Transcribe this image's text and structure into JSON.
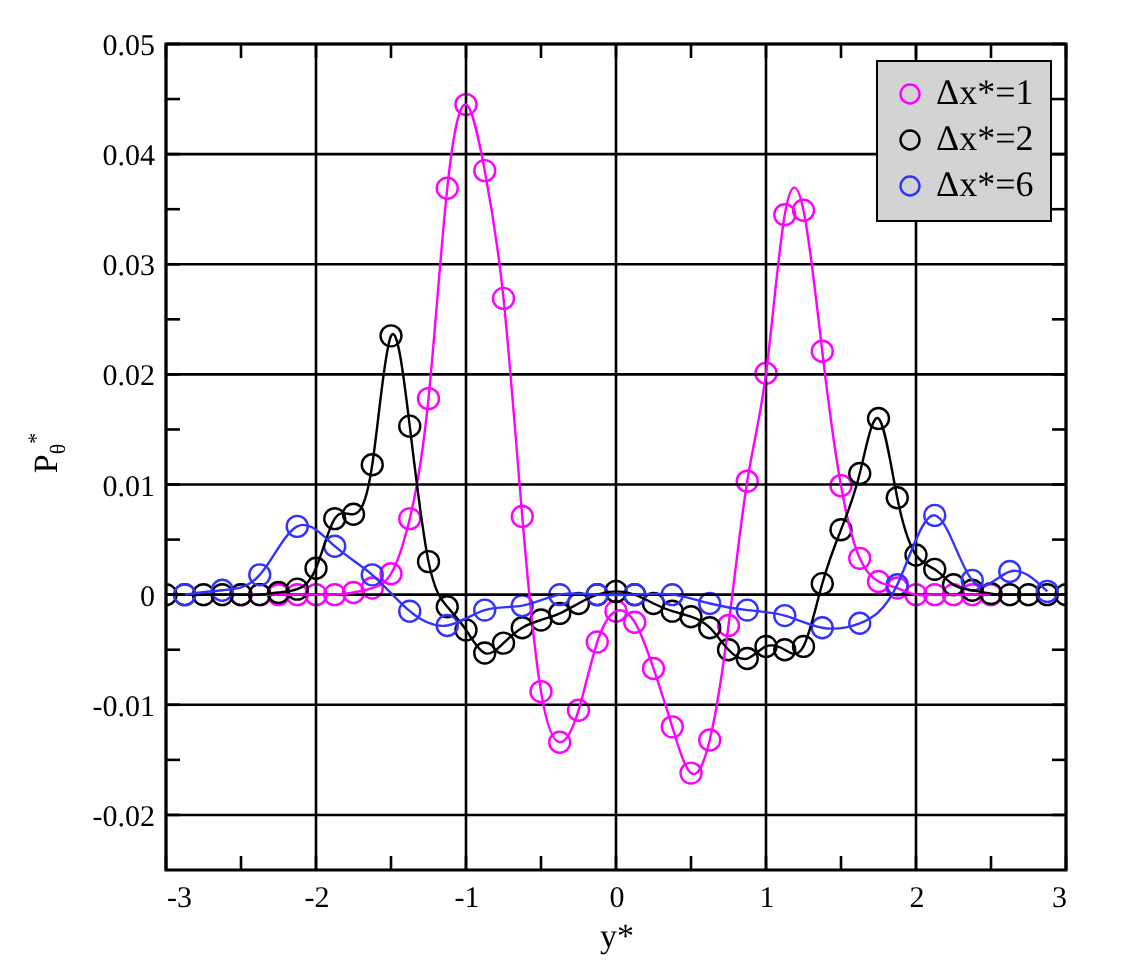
{
  "chart_data": {
    "type": "line",
    "xlabel": "y*",
    "ylabel": "P$_{θ}$$^{*}$",
    "xlim": [
      -3,
      3
    ],
    "ylim": [
      -0.025,
      0.05
    ],
    "xticks": [
      -3,
      {
        "value": -2.5,
        "label": null
      },
      -2,
      {
        "value": -1.5,
        "label": null
      },
      -1,
      {
        "value": -0.5,
        "label": null
      },
      0,
      {
        "value": 0.5,
        "label": null
      },
      1,
      {
        "value": 1.5,
        "label": null
      },
      2,
      {
        "value": 2.5,
        "label": null
      },
      3
    ],
    "yticks": [
      -0.02,
      {
        "value": -0.015,
        "label": null
      },
      -0.01,
      {
        "value": -0.005,
        "label": null
      },
      0,
      {
        "value": 0.005,
        "label": null
      },
      0.01,
      {
        "value": 0.015,
        "label": null
      },
      0.02,
      {
        "value": 0.025,
        "label": null
      },
      0.03,
      {
        "value": 0.035,
        "label": null
      },
      0.04,
      {
        "value": 0.045,
        "label": null
      },
      0.05
    ],
    "grid": true,
    "legend": "top right",
    "marker": "circle",
    "line_style": "solid",
    "series": [
      {
        "name": "Δx*=1",
        "color": "#ff00ff",
        "x": [
          -2.5,
          -2.375,
          -2.25,
          -2.125,
          -2.0,
          -1.875,
          -1.75,
          -1.625,
          -1.5,
          -1.375,
          -1.25,
          -1.125,
          -1.0,
          -0.875,
          -0.75,
          -0.625,
          -0.5,
          -0.375,
          -0.25,
          -0.125,
          0,
          0.125,
          0.25,
          0.375,
          0.5,
          0.625,
          0.75,
          0.875,
          1.0,
          1.125,
          1.25,
          1.375,
          1.5,
          1.625,
          1.75,
          1.875,
          2.0,
          2.125,
          2.25,
          2.375,
          2.5
        ],
        "values": [
          0,
          0,
          0,
          0,
          0,
          0,
          0.0002,
          0.0006,
          0.0019,
          0.0069,
          0.0178,
          0.0369,
          0.0445,
          0.0385,
          0.0269,
          0.0071,
          -0.0088,
          -0.0134,
          -0.0105,
          -0.0043,
          -0.0015,
          -0.0025,
          -0.0067,
          -0.012,
          -0.0162,
          -0.0132,
          -0.0028,
          0.0103,
          0.0201,
          0.0345,
          0.0349,
          0.0221,
          0.0099,
          0.0033,
          0.0012,
          0.0006,
          0,
          0,
          0,
          0,
          0
        ]
      },
      {
        "name": "Δx*=2",
        "color": "#000000",
        "x": [
          -3,
          -2.875,
          -2.75,
          -2.625,
          -2.5,
          -2.375,
          -2.25,
          -2.125,
          -2.0,
          -1.875,
          -1.75,
          -1.625,
          -1.5,
          -1.375,
          -1.25,
          -1.125,
          -1.0,
          -0.875,
          -0.75,
          -0.625,
          -0.5,
          -0.375,
          -0.25,
          -0.125,
          0,
          0.125,
          0.25,
          0.375,
          0.5,
          0.625,
          0.75,
          0.875,
          1.0,
          1.125,
          1.25,
          1.375,
          1.5,
          1.625,
          1.75,
          1.875,
          2.0,
          2.125,
          2.25,
          2.375,
          2.5,
          2.625,
          2.75,
          2.875,
          3
        ],
        "values": [
          0,
          0,
          0,
          0,
          0,
          0,
          0.0002,
          0.0005,
          0.0024,
          0.0069,
          0.0073,
          0.0118,
          0.0235,
          0.0153,
          0.003,
          -0.0011,
          -0.0032,
          -0.0053,
          -0.0044,
          -0.003,
          -0.0023,
          -0.0017,
          -0.0008,
          0,
          0.0003,
          0,
          -0.0008,
          -0.0015,
          -0.002,
          -0.003,
          -0.005,
          -0.0058,
          -0.0047,
          -0.005,
          -0.0047,
          0.001,
          0.0059,
          0.011,
          0.016,
          0.0088,
          0.0036,
          0.0023,
          0.0009,
          0.0004,
          0.0001,
          0,
          0,
          0,
          0
        ]
      },
      {
        "name": "Δx*=6",
        "color": "#3333ff",
        "x": [
          -2.875,
          -2.625,
          -2.375,
          -2.125,
          -1.875,
          -1.625,
          -1.375,
          -1.125,
          -0.875,
          -0.625,
          -0.375,
          -0.125,
          0.125,
          0.375,
          0.625,
          0.875,
          1.125,
          1.375,
          1.625,
          1.875,
          2.125,
          2.375,
          2.625,
          2.875
        ],
        "values": [
          0,
          0.0004,
          0.0018,
          0.0062,
          0.0044,
          0.0018,
          -0.0015,
          -0.0028,
          -0.0014,
          -0.001,
          0,
          0,
          0,
          0,
          -0.0008,
          -0.0014,
          -0.0019,
          -0.003,
          -0.0026,
          0.0009,
          0.0072,
          0.0013,
          0.0021,
          0.0003
        ]
      }
    ]
  }
}
